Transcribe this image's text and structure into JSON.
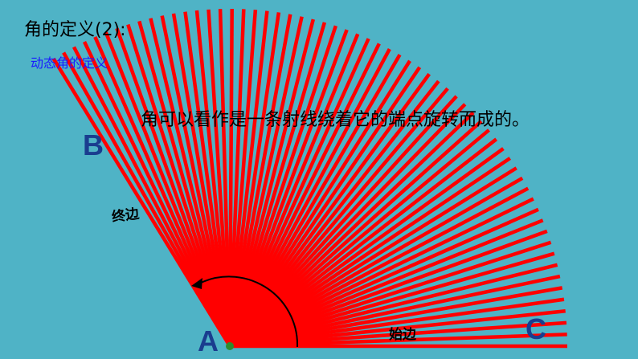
{
  "title": "角的定义(2):",
  "subtitle": "动态角的定义",
  "statement": "角可以看作是一条射线绕着它的端点旋转而成的。",
  "points": {
    "A": "A",
    "B": "B",
    "C": "C"
  },
  "sides": {
    "terminal": "终边",
    "initial": "始边"
  }
}
